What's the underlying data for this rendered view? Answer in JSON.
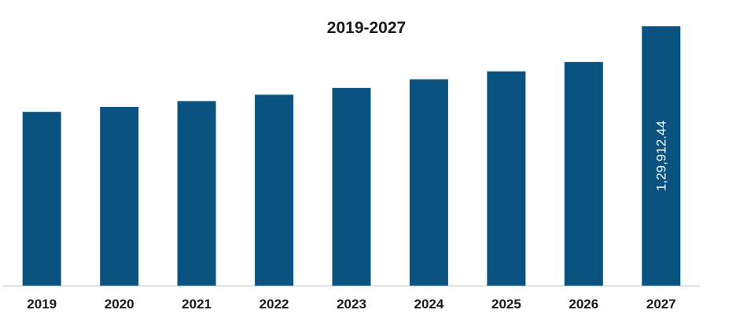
{
  "chart_data": {
    "type": "bar",
    "title": "2019-2027",
    "xlabel": "",
    "ylabel": "",
    "categories": [
      "2019",
      "2020",
      "2021",
      "2022",
      "2023",
      "2024",
      "2025",
      "2026",
      "2027"
    ],
    "values": [
      87000,
      89500,
      92400,
      95600,
      99000,
      103300,
      107300,
      112000,
      129912.44
    ],
    "data_labels": [
      "",
      "",
      "",
      "",
      "",
      "",
      "",
      "",
      "1,29,912.44"
    ],
    "ylim": [
      0,
      132000
    ],
    "grid": false,
    "legend": "none",
    "bar_color": "#0a527f",
    "axis_color": "#bfbfbf"
  }
}
